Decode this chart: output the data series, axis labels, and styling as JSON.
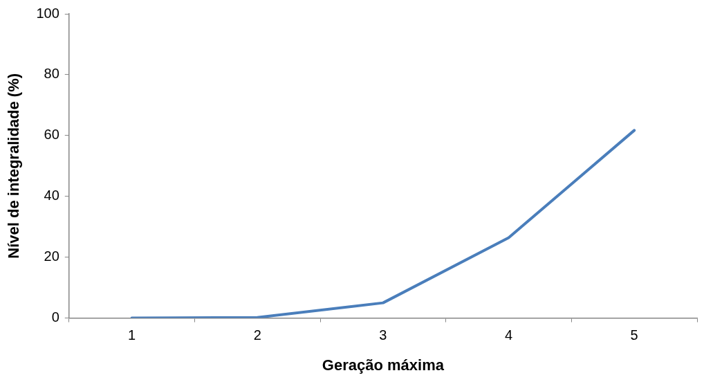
{
  "chart_data": {
    "type": "line",
    "xlabel": "Geração máxima",
    "ylabel": "Nível de integralidade (%)",
    "categories": [
      "1",
      "2",
      "3",
      "4",
      "5"
    ],
    "series": [
      {
        "color": "#4a7ebb",
        "values": [
          0,
          0.2,
          5,
          26.4,
          61.7
        ]
      }
    ],
    "ylim": [
      0,
      100
    ],
    "yticks": [
      0,
      20,
      40,
      60,
      80,
      100
    ],
    "grid": false,
    "legend": false,
    "marker": "none",
    "line_style": "solid"
  }
}
